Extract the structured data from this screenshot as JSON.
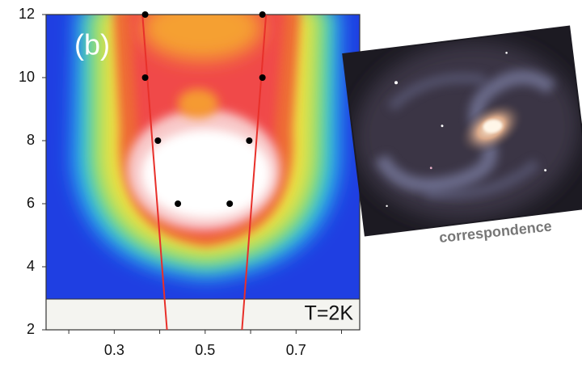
{
  "chart_data": {
    "type": "scatter",
    "panel_label": "(b)",
    "annotation": "T=2K",
    "caption": "correspondence",
    "xlim": [
      0.15,
      0.84
    ],
    "ylim": [
      2,
      12
    ],
    "xticks": [
      0.3,
      0.5,
      0.7
    ],
    "xminorticks": [
      0.2,
      0.4,
      0.6,
      0.8
    ],
    "yticks": [
      2,
      4,
      6,
      8,
      10,
      12
    ],
    "points": {
      "color": "#000000",
      "x": [
        0.368,
        0.626,
        0.368,
        0.626,
        0.396,
        0.597,
        0.44,
        0.554
      ],
      "y": [
        12,
        12,
        10,
        10,
        8,
        8,
        6,
        6
      ]
    },
    "lines": [
      {
        "color": "#e8302a",
        "x": [
          0.362,
          0.416
        ],
        "y": [
          12,
          2
        ]
      },
      {
        "color": "#e8302a",
        "x": [
          0.634,
          0.581
        ],
        "y": [
          12,
          2
        ]
      }
    ]
  }
}
